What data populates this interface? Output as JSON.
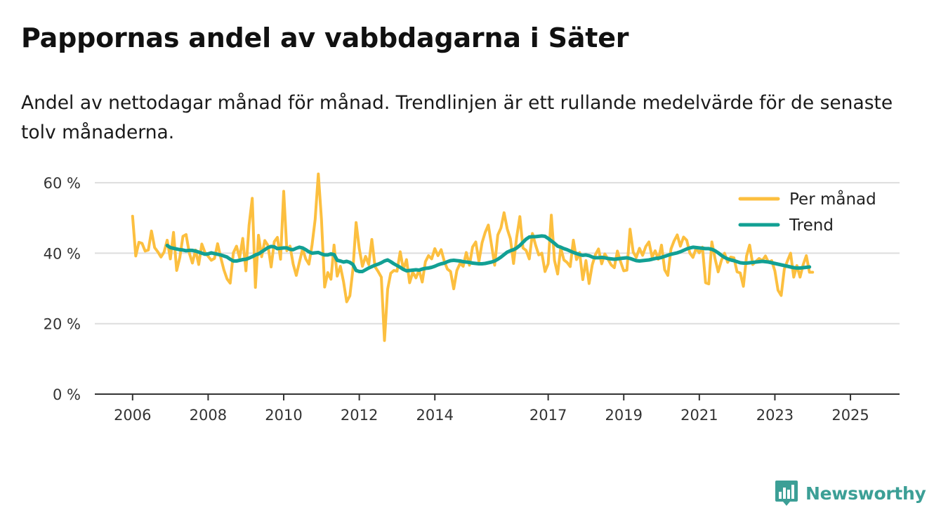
{
  "title": "Pappornas andel av vabbdagarna i Säter",
  "subtitle": "Andel av nettodagar månad för månad. Trendlinjen är ett rullande medelvärde för de senaste tolv månaderna.",
  "brand": {
    "name": "Newsworthy",
    "color": "#3c9f96",
    "icon": "bar-chart-speech-bubble-icon"
  },
  "colors": {
    "monthly": "#fcbf3f",
    "trend": "#12a094",
    "grid": "#dddddd",
    "axis": "#333333"
  },
  "chart_data": {
    "type": "line",
    "title": "Pappornas andel av vabbdagarna i Säter",
    "xlabel": "",
    "ylabel": "",
    "ylim": [
      0,
      70
    ],
    "y_ticks": [
      0,
      20,
      40,
      60
    ],
    "y_tick_labels": [
      "0 %",
      "20 %",
      "40 %",
      "60 %"
    ],
    "x_range": [
      2005.0,
      2026.3
    ],
    "x_ticks": [
      2006,
      2008,
      2010,
      2012,
      2014,
      2017,
      2019,
      2021,
      2023,
      2025
    ],
    "x_tick_labels": [
      "2006",
      "2008",
      "2010",
      "2012",
      "2014",
      "2017",
      "2019",
      "2021",
      "2023",
      "2025"
    ],
    "legend_position": "top-right",
    "series": [
      {
        "name": "Per månad",
        "color": "#fcbf3f",
        "start": 2006.0,
        "step": 0.08333,
        "values": [
          50.5,
          39.2,
          43.1,
          42.8,
          40.6,
          40.9,
          46.3,
          41.6,
          40.4,
          38.9,
          40.3,
          43.7,
          38.4,
          45.9,
          35.1,
          38.8,
          44.8,
          45.3,
          40.1,
          37.2,
          40.9,
          36.8,
          42.6,
          40.2,
          39.1,
          38.0,
          38.5,
          42.7,
          38.8,
          35.3,
          32.7,
          31.5,
          40.1,
          42.0,
          38.7,
          44.2,
          35.0,
          48.0,
          55.6,
          30.3,
          45.1,
          39.0,
          43.6,
          42.2,
          36.1,
          43.3,
          44.5,
          38.3,
          57.6,
          40.7,
          42.0,
          36.9,
          33.7,
          37.5,
          41.2,
          38.4,
          36.9,
          42.4,
          49.6,
          62.5,
          49.5,
          30.4,
          34.5,
          32.6,
          42.3,
          33.5,
          36.3,
          31.9,
          26.2,
          27.9,
          35.5,
          48.7,
          41.3,
          36.3,
          39.1,
          36.8,
          43.9,
          36.2,
          34.8,
          33.2,
          15.2,
          29.8,
          34.3,
          35.1,
          34.9,
          40.4,
          35.4,
          38.2,
          31.6,
          34.6,
          33.0,
          35.2,
          31.8,
          37.6,
          39.3,
          38.4,
          41.3,
          39.3,
          41.0,
          37.7,
          35.5,
          34.8,
          29.9,
          35.1,
          37.1,
          36.3,
          40.2,
          36.6,
          41.8,
          43.2,
          37.7,
          43.0,
          45.9,
          48.0,
          42.4,
          36.6,
          45.2,
          47.2,
          51.5,
          46.9,
          44.1,
          37.1,
          44.6,
          50.4,
          41.5,
          40.8,
          38.4,
          45.6,
          42.3,
          39.5,
          40.0,
          34.8,
          37.0,
          50.8,
          38.0,
          34.1,
          41.5,
          38.1,
          37.4,
          36.2,
          43.7,
          38.2,
          40.2,
          32.5,
          37.9,
          31.4,
          36.7,
          39.6,
          41.2,
          37.0,
          39.8,
          38.3,
          36.7,
          35.9,
          40.6,
          37.6,
          35.0,
          35.2,
          46.8,
          40.3,
          38.8,
          41.4,
          39.4,
          41.9,
          43.2,
          38.9,
          40.7,
          38.3,
          42.3,
          35.3,
          33.7,
          41.2,
          43.5,
          45.2,
          42.0,
          44.6,
          43.7,
          40.0,
          38.8,
          41.4,
          40.1,
          41.7,
          31.6,
          31.3,
          43.2,
          38.5,
          34.7,
          37.9,
          40.0,
          37.4,
          38.9,
          38.7,
          34.7,
          34.4,
          30.6,
          39.2,
          42.3,
          36.8,
          37.7,
          38.5,
          37.9,
          39.2,
          37.4,
          37.9,
          35.0,
          29.5,
          28.0,
          35.5,
          37.8,
          40.0,
          33.2,
          36.5,
          33.2,
          36.8,
          39.3,
          34.6,
          34.6
        ]
      },
      {
        "name": "Trend",
        "color": "#12a094",
        "start": 2006.9167,
        "step": 0.08333,
        "values": [
          42.2,
          41.6,
          41.4,
          41.2,
          41.0,
          40.9,
          40.7,
          40.8,
          40.8,
          40.6,
          40.3,
          40.0,
          39.7,
          39.8,
          40.1,
          39.9,
          39.7,
          39.5,
          39.2,
          38.9,
          38.3,
          37.8,
          37.8,
          38.0,
          38.2,
          38.3,
          38.6,
          39.0,
          39.5,
          39.8,
          40.4,
          41.0,
          41.6,
          41.9,
          41.8,
          41.3,
          41.4,
          41.5,
          41.5,
          41.1,
          41.0,
          41.4,
          41.7,
          41.5,
          41.0,
          40.4,
          40.0,
          40.1,
          40.2,
          39.8,
          39.5,
          39.5,
          39.8,
          39.6,
          38.0,
          37.8,
          37.5,
          37.7,
          37.4,
          36.8,
          35.1,
          34.8,
          34.8,
          35.3,
          35.8,
          36.2,
          36.6,
          36.9,
          37.3,
          37.8,
          38.1,
          37.6,
          37.0,
          36.5,
          36.0,
          35.4,
          35.0,
          35.1,
          35.2,
          35.3,
          35.2,
          35.5,
          35.7,
          35.8,
          36.0,
          36.3,
          36.7,
          37.0,
          37.2,
          37.6,
          37.9,
          38.0,
          37.9,
          37.8,
          37.6,
          37.5,
          37.4,
          37.2,
          37.1,
          37.0,
          37.0,
          37.1,
          37.3,
          37.5,
          37.8,
          38.3,
          38.9,
          39.6,
          40.3,
          40.7,
          41.0,
          41.5,
          42.2,
          43.1,
          44.0,
          44.6,
          44.7,
          44.7,
          44.8,
          44.9,
          44.8,
          44.2,
          43.5,
          42.8,
          42.0,
          41.7,
          41.3,
          41.0,
          40.6,
          40.2,
          39.9,
          39.6,
          39.4,
          39.5,
          39.3,
          38.9,
          38.7,
          38.7,
          38.8,
          38.7,
          38.5,
          38.4,
          38.3,
          38.4,
          38.5,
          38.6,
          38.7,
          38.5,
          38.2,
          37.9,
          37.8,
          37.9,
          38.0,
          38.1,
          38.3,
          38.5,
          38.6,
          38.8,
          39.1,
          39.4,
          39.7,
          39.9,
          40.1,
          40.4,
          40.8,
          41.2,
          41.5,
          41.7,
          41.6,
          41.5,
          41.4,
          41.3,
          41.3,
          41.1,
          40.7,
          40.1,
          39.4,
          38.8,
          38.4,
          38.1,
          37.9,
          37.6,
          37.3,
          37.2,
          37.2,
          37.3,
          37.4,
          37.5,
          37.6,
          37.7,
          37.6,
          37.5,
          37.3,
          37.1,
          36.9,
          36.7,
          36.5,
          36.3,
          36.1,
          35.9,
          35.8,
          35.8,
          35.9,
          36.0,
          36.1
        ]
      }
    ]
  }
}
